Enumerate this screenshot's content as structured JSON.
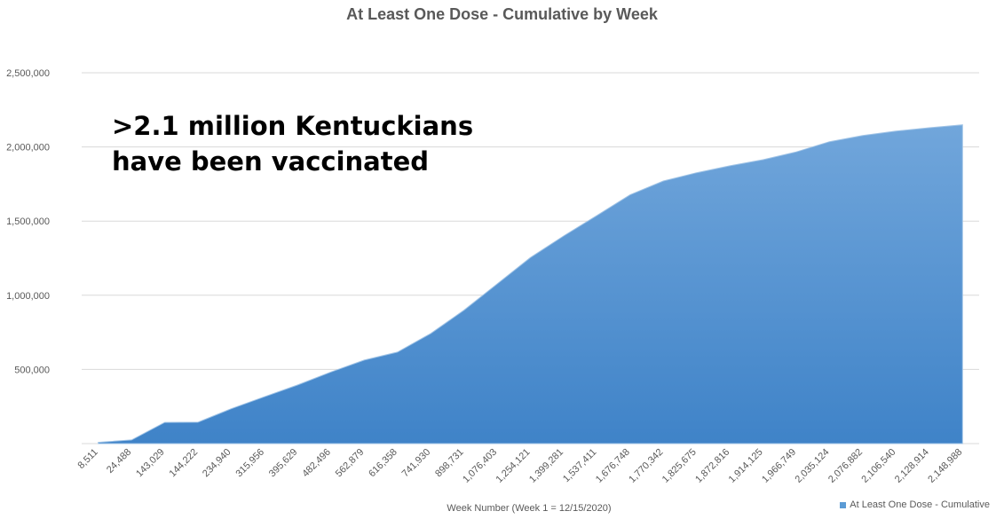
{
  "chart_data": {
    "type": "area",
    "title": "At Least One Dose - Cumulative by Week",
    "xlabel": "Week Number (Week 1 = 12/15/2020)",
    "ylabel": "",
    "ylim": [
      0,
      2500000
    ],
    "yticks": [
      500000,
      1000000,
      1500000,
      2000000,
      2500000
    ],
    "ytick_labels": [
      "500,000",
      "1,000,000",
      "1,500,000",
      "2,000,000",
      "2,500,000"
    ],
    "grid": true,
    "legend_position": "bottom-right",
    "categories": [
      "8,511",
      "24,488",
      "143,029",
      "144,222",
      "234,940",
      "315,956",
      "395,629",
      "482,496",
      "562,879",
      "616,358",
      "741,930",
      "898,731",
      "1,076,403",
      "1,254,121",
      "1,399,281",
      "1,537,411",
      "1,676,748",
      "1,770,342",
      "1,825,675",
      "1,872,816",
      "1,914,125",
      "1,966,749",
      "2,035,124",
      "2,076,882",
      "2,106,540",
      "2,128,914",
      "2,148,988"
    ],
    "series": [
      {
        "name": "At Least One Dose - Cumulative",
        "color": "#5B9BD5",
        "values": [
          8511,
          24488,
          143029,
          144222,
          234940,
          315956,
          395629,
          482496,
          562879,
          616358,
          741930,
          898731,
          1076403,
          1254121,
          1399281,
          1537411,
          1676748,
          1770342,
          1825675,
          1872816,
          1914125,
          1966749,
          2035124,
          2076882,
          2106540,
          2128914,
          2148988
        ]
      }
    ],
    "annotation": [
      ">2.1 million Kentuckians",
      "have been vaccinated"
    ]
  }
}
